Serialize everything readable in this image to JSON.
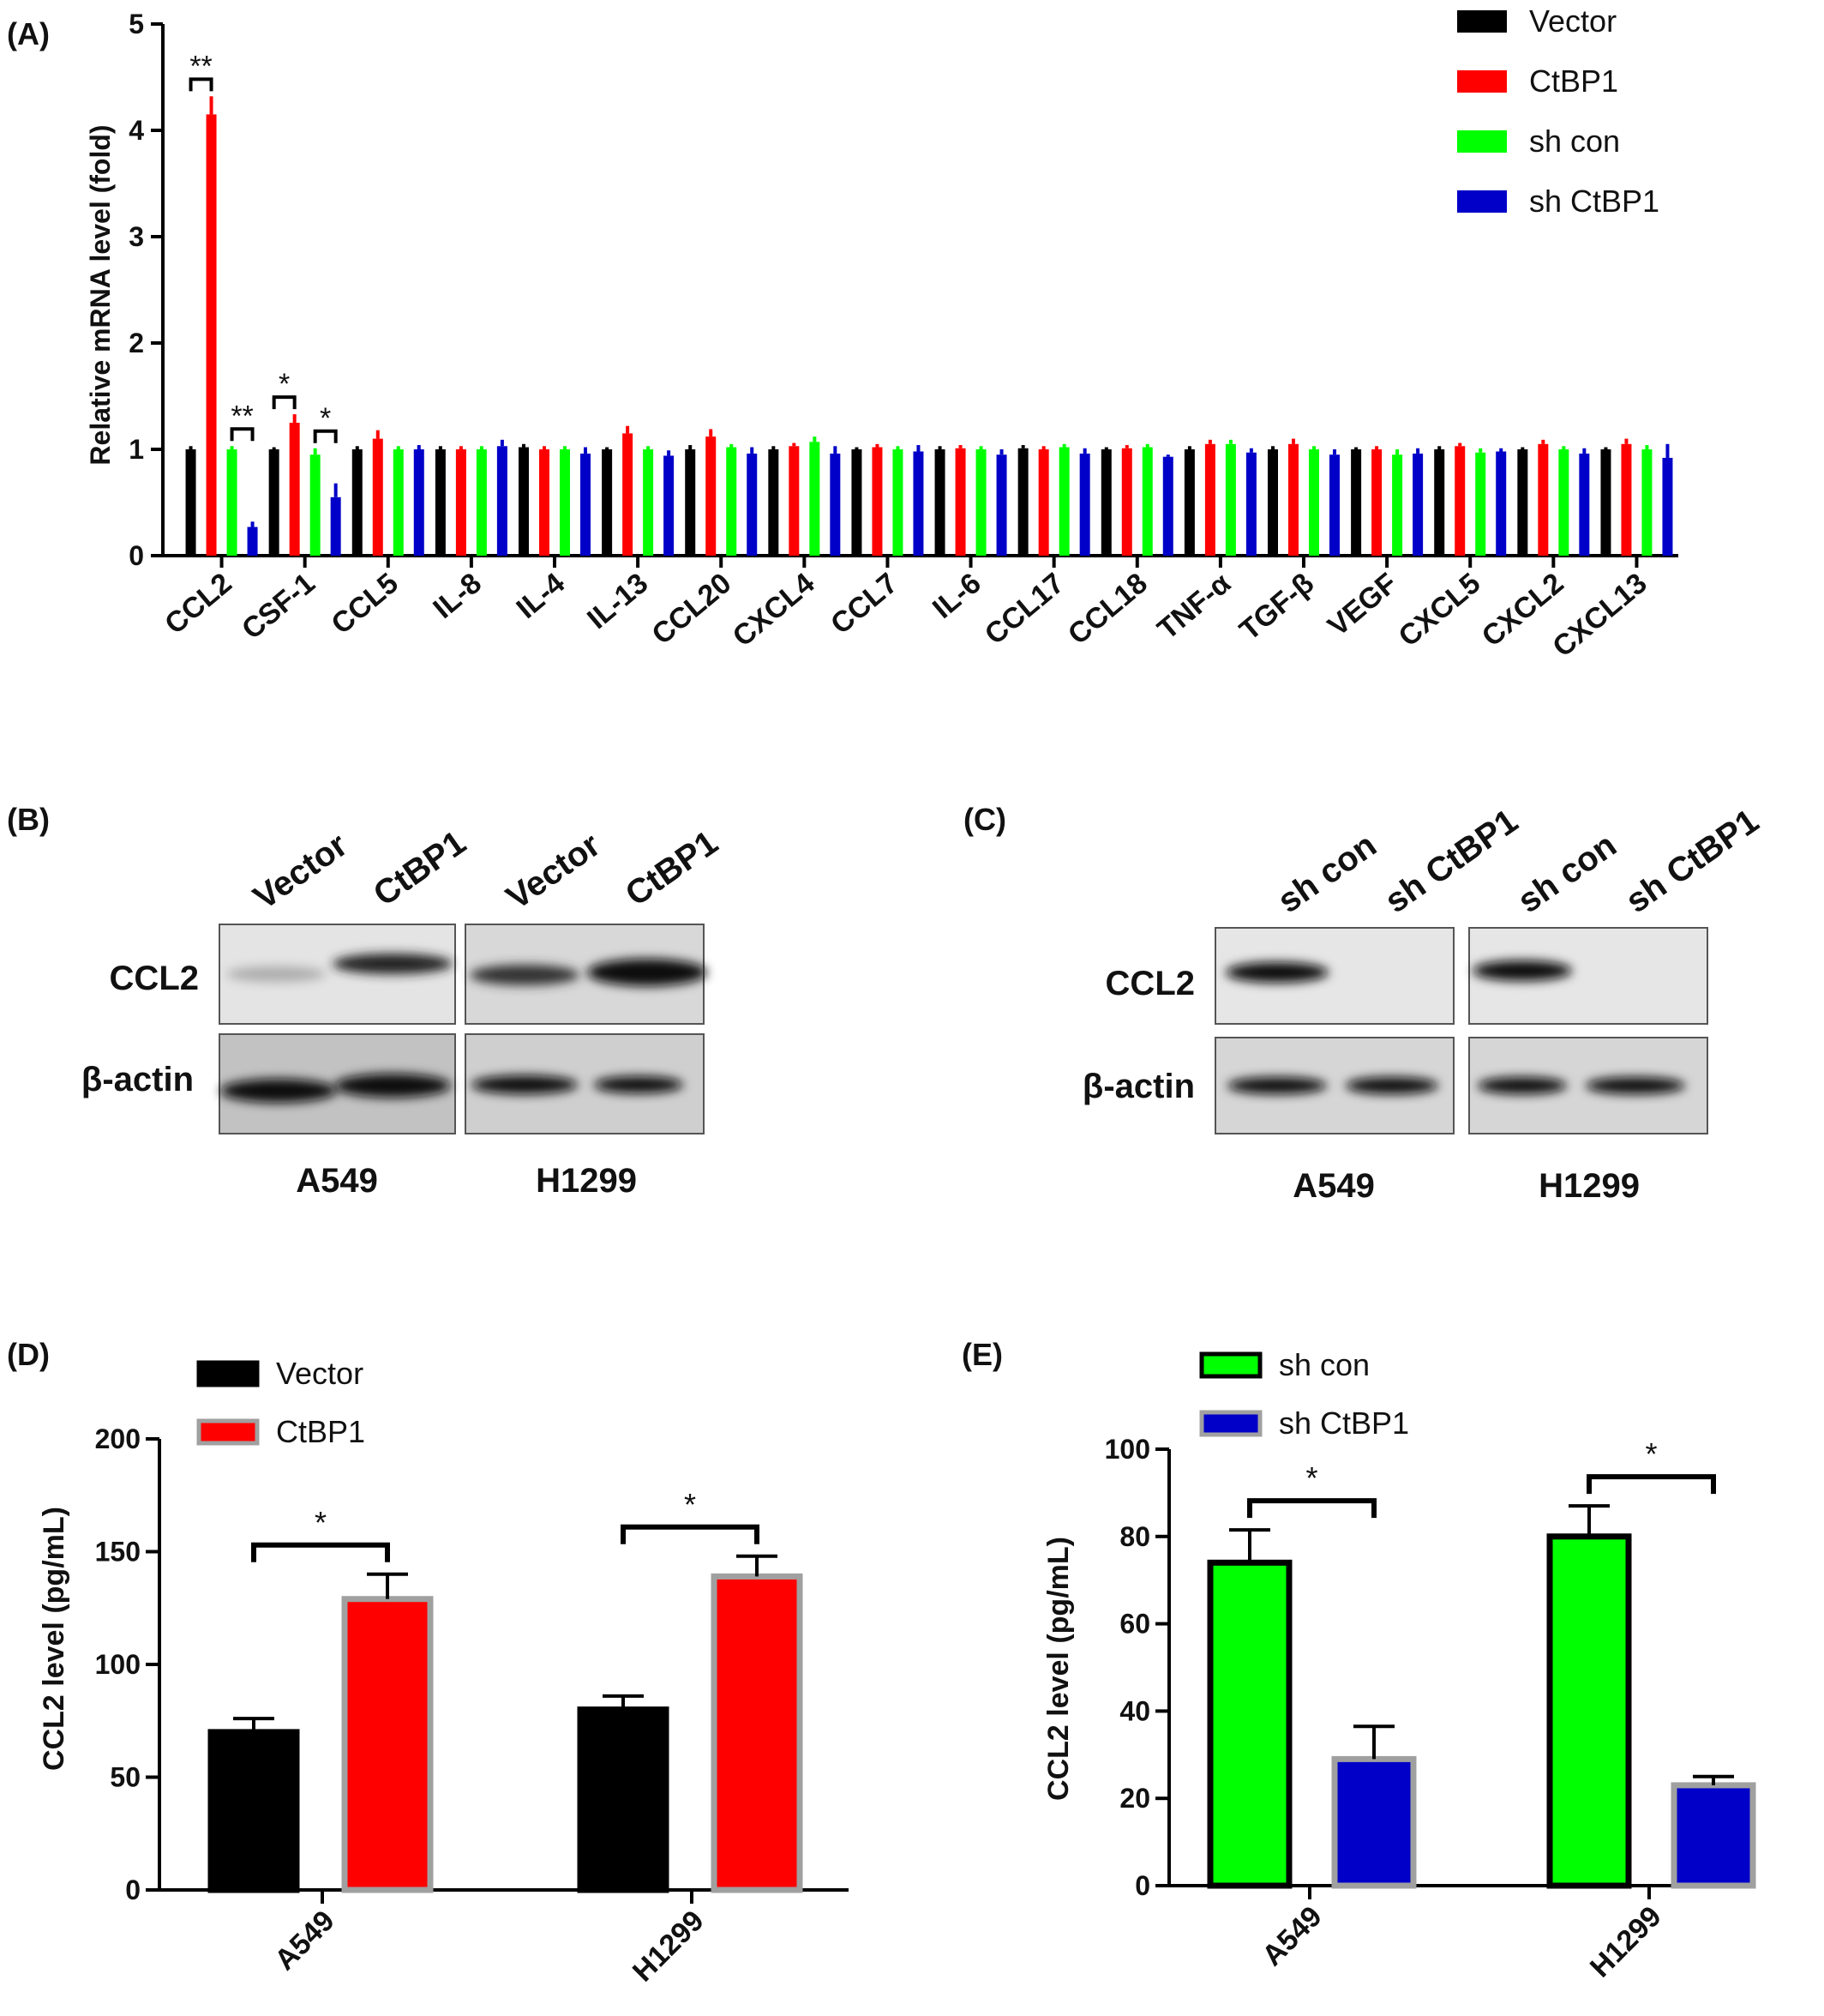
{
  "colors": {
    "vector": "#000000",
    "ctbp1": "#ff0000",
    "sh_con": "#00ff00",
    "sh_ctbp1": "#0000c8",
    "bar_outline_gray": "#a0a0a0"
  },
  "chart_data": [
    {
      "panel": "(A)",
      "type": "bar",
      "ylabel": "Relative mRNA level (fold)",
      "ylim": [
        0,
        5
      ],
      "yticks": [
        "0",
        "1",
        "2",
        "3",
        "4",
        "5"
      ],
      "categories": [
        "CCL2",
        "CSF-1",
        "CCL5",
        "IL-8",
        "IL-4",
        "IL-13",
        "CCL20",
        "CXCL4",
        "CCL7",
        "IL-6",
        "CCL17",
        "CCL18",
        "TNF-α",
        "TGF-β",
        "VEGF",
        "CXCL5",
        "CXCL2",
        "CXCL13"
      ],
      "legend_position": "top-right",
      "series": [
        {
          "name": "Vector",
          "color": "#000000",
          "values": [
            1.0,
            1.0,
            1.0,
            1.0,
            1.02,
            1.0,
            1.0,
            1.0,
            1.0,
            1.0,
            1.01,
            1.0,
            1.0,
            1.0,
            1.0,
            1.0,
            1.0,
            1.0
          ],
          "errors": [
            0.03,
            0.02,
            0.03,
            0.03,
            0.03,
            0.02,
            0.04,
            0.03,
            0.02,
            0.03,
            0.03,
            0.02,
            0.03,
            0.03,
            0.02,
            0.03,
            0.02,
            0.02
          ]
        },
        {
          "name": "CtBP1",
          "color": "#ff0000",
          "values": [
            4.15,
            1.25,
            1.1,
            1.0,
            1.0,
            1.15,
            1.12,
            1.03,
            1.02,
            1.01,
            1.0,
            1.01,
            1.05,
            1.05,
            1.0,
            1.03,
            1.05,
            1.05
          ],
          "errors": [
            0.17,
            0.08,
            0.08,
            0.03,
            0.03,
            0.07,
            0.07,
            0.03,
            0.03,
            0.03,
            0.03,
            0.03,
            0.04,
            0.05,
            0.03,
            0.03,
            0.04,
            0.05
          ]
        },
        {
          "name": "sh con",
          "color": "#00ff00",
          "values": [
            1.0,
            0.95,
            1.0,
            1.0,
            1.0,
            1.0,
            1.02,
            1.07,
            1.0,
            1.0,
            1.02,
            1.02,
            1.05,
            1.0,
            0.95,
            0.97,
            1.0,
            1.0
          ],
          "errors": [
            0.03,
            0.06,
            0.03,
            0.03,
            0.03,
            0.03,
            0.03,
            0.05,
            0.03,
            0.03,
            0.03,
            0.03,
            0.04,
            0.03,
            0.05,
            0.04,
            0.03,
            0.04
          ]
        },
        {
          "name": "sh CtBP1",
          "color": "#0000c8",
          "values": [
            0.27,
            0.55,
            1.0,
            1.03,
            0.96,
            0.94,
            0.96,
            0.96,
            0.98,
            0.95,
            0.96,
            0.93,
            0.97,
            0.95,
            0.96,
            0.98,
            0.96,
            0.92
          ],
          "errors": [
            0.05,
            0.13,
            0.04,
            0.06,
            0.06,
            0.05,
            0.06,
            0.07,
            0.06,
            0.05,
            0.05,
            0.02,
            0.04,
            0.05,
            0.05,
            0.03,
            0.05,
            0.13
          ]
        }
      ],
      "significance": [
        {
          "category": "CCL2",
          "between": [
            "Vector",
            "CtBP1"
          ],
          "label": "**"
        },
        {
          "category": "CCL2",
          "between": [
            "sh con",
            "sh CtBP1"
          ],
          "label": "**"
        },
        {
          "category": "CSF-1",
          "between": [
            "Vector",
            "CtBP1"
          ],
          "label": "*"
        },
        {
          "category": "CSF-1",
          "between": [
            "sh con",
            "sh CtBP1"
          ],
          "label": "*"
        }
      ]
    },
    {
      "panel": "(D)",
      "type": "bar",
      "ylabel": "CCL2 level (pg/mL)",
      "ylim": [
        0,
        200
      ],
      "yticks": [
        "0",
        "50",
        "100",
        "150",
        "200"
      ],
      "categories": [
        "A549",
        "H1299"
      ],
      "legend_position": "top-left",
      "series": [
        {
          "name": "Vector",
          "color": "#000000",
          "values": [
            70,
            80
          ],
          "errors": [
            6,
            6
          ]
        },
        {
          "name": "CtBP1",
          "color": "#ff0000",
          "values": [
            129,
            139
          ],
          "errors": [
            11,
            9
          ]
        }
      ],
      "significance": [
        {
          "category": "A549",
          "label": "*"
        },
        {
          "category": "H1299",
          "label": "*"
        }
      ]
    },
    {
      "panel": "(E)",
      "type": "bar",
      "ylabel": "CCL2 level (pg/mL)",
      "ylim": [
        0,
        100
      ],
      "yticks": [
        "0",
        "20",
        "40",
        "60",
        "80",
        "100"
      ],
      "categories": [
        "A549",
        "H1299"
      ],
      "legend_position": "top-left",
      "series": [
        {
          "name": "sh con",
          "color": "#00ff00",
          "values": [
            74,
            80
          ],
          "errors": [
            7.5,
            7
          ]
        },
        {
          "name": "sh CtBP1",
          "color": "#0000c8",
          "values": [
            29,
            23
          ],
          "errors": [
            7.5,
            2
          ]
        }
      ],
      "significance": [
        {
          "category": "A549",
          "label": "*"
        },
        {
          "category": "H1299",
          "label": "*"
        }
      ]
    }
  ],
  "blots": {
    "B": {
      "panel": "(B)",
      "lanes": [
        "Vector",
        "CtBP1",
        "Vector",
        "CtBP1"
      ],
      "rows": [
        "CCL2",
        "β-actin"
      ],
      "cell_lines": [
        "A549",
        "H1299"
      ]
    },
    "C": {
      "panel": "(C)",
      "lanes": [
        "sh con",
        "sh CtBP1",
        "sh con",
        "sh CtBP1"
      ],
      "rows": [
        "CCL2",
        "β-actin"
      ],
      "cell_lines": [
        "A549",
        "H1299"
      ]
    }
  }
}
